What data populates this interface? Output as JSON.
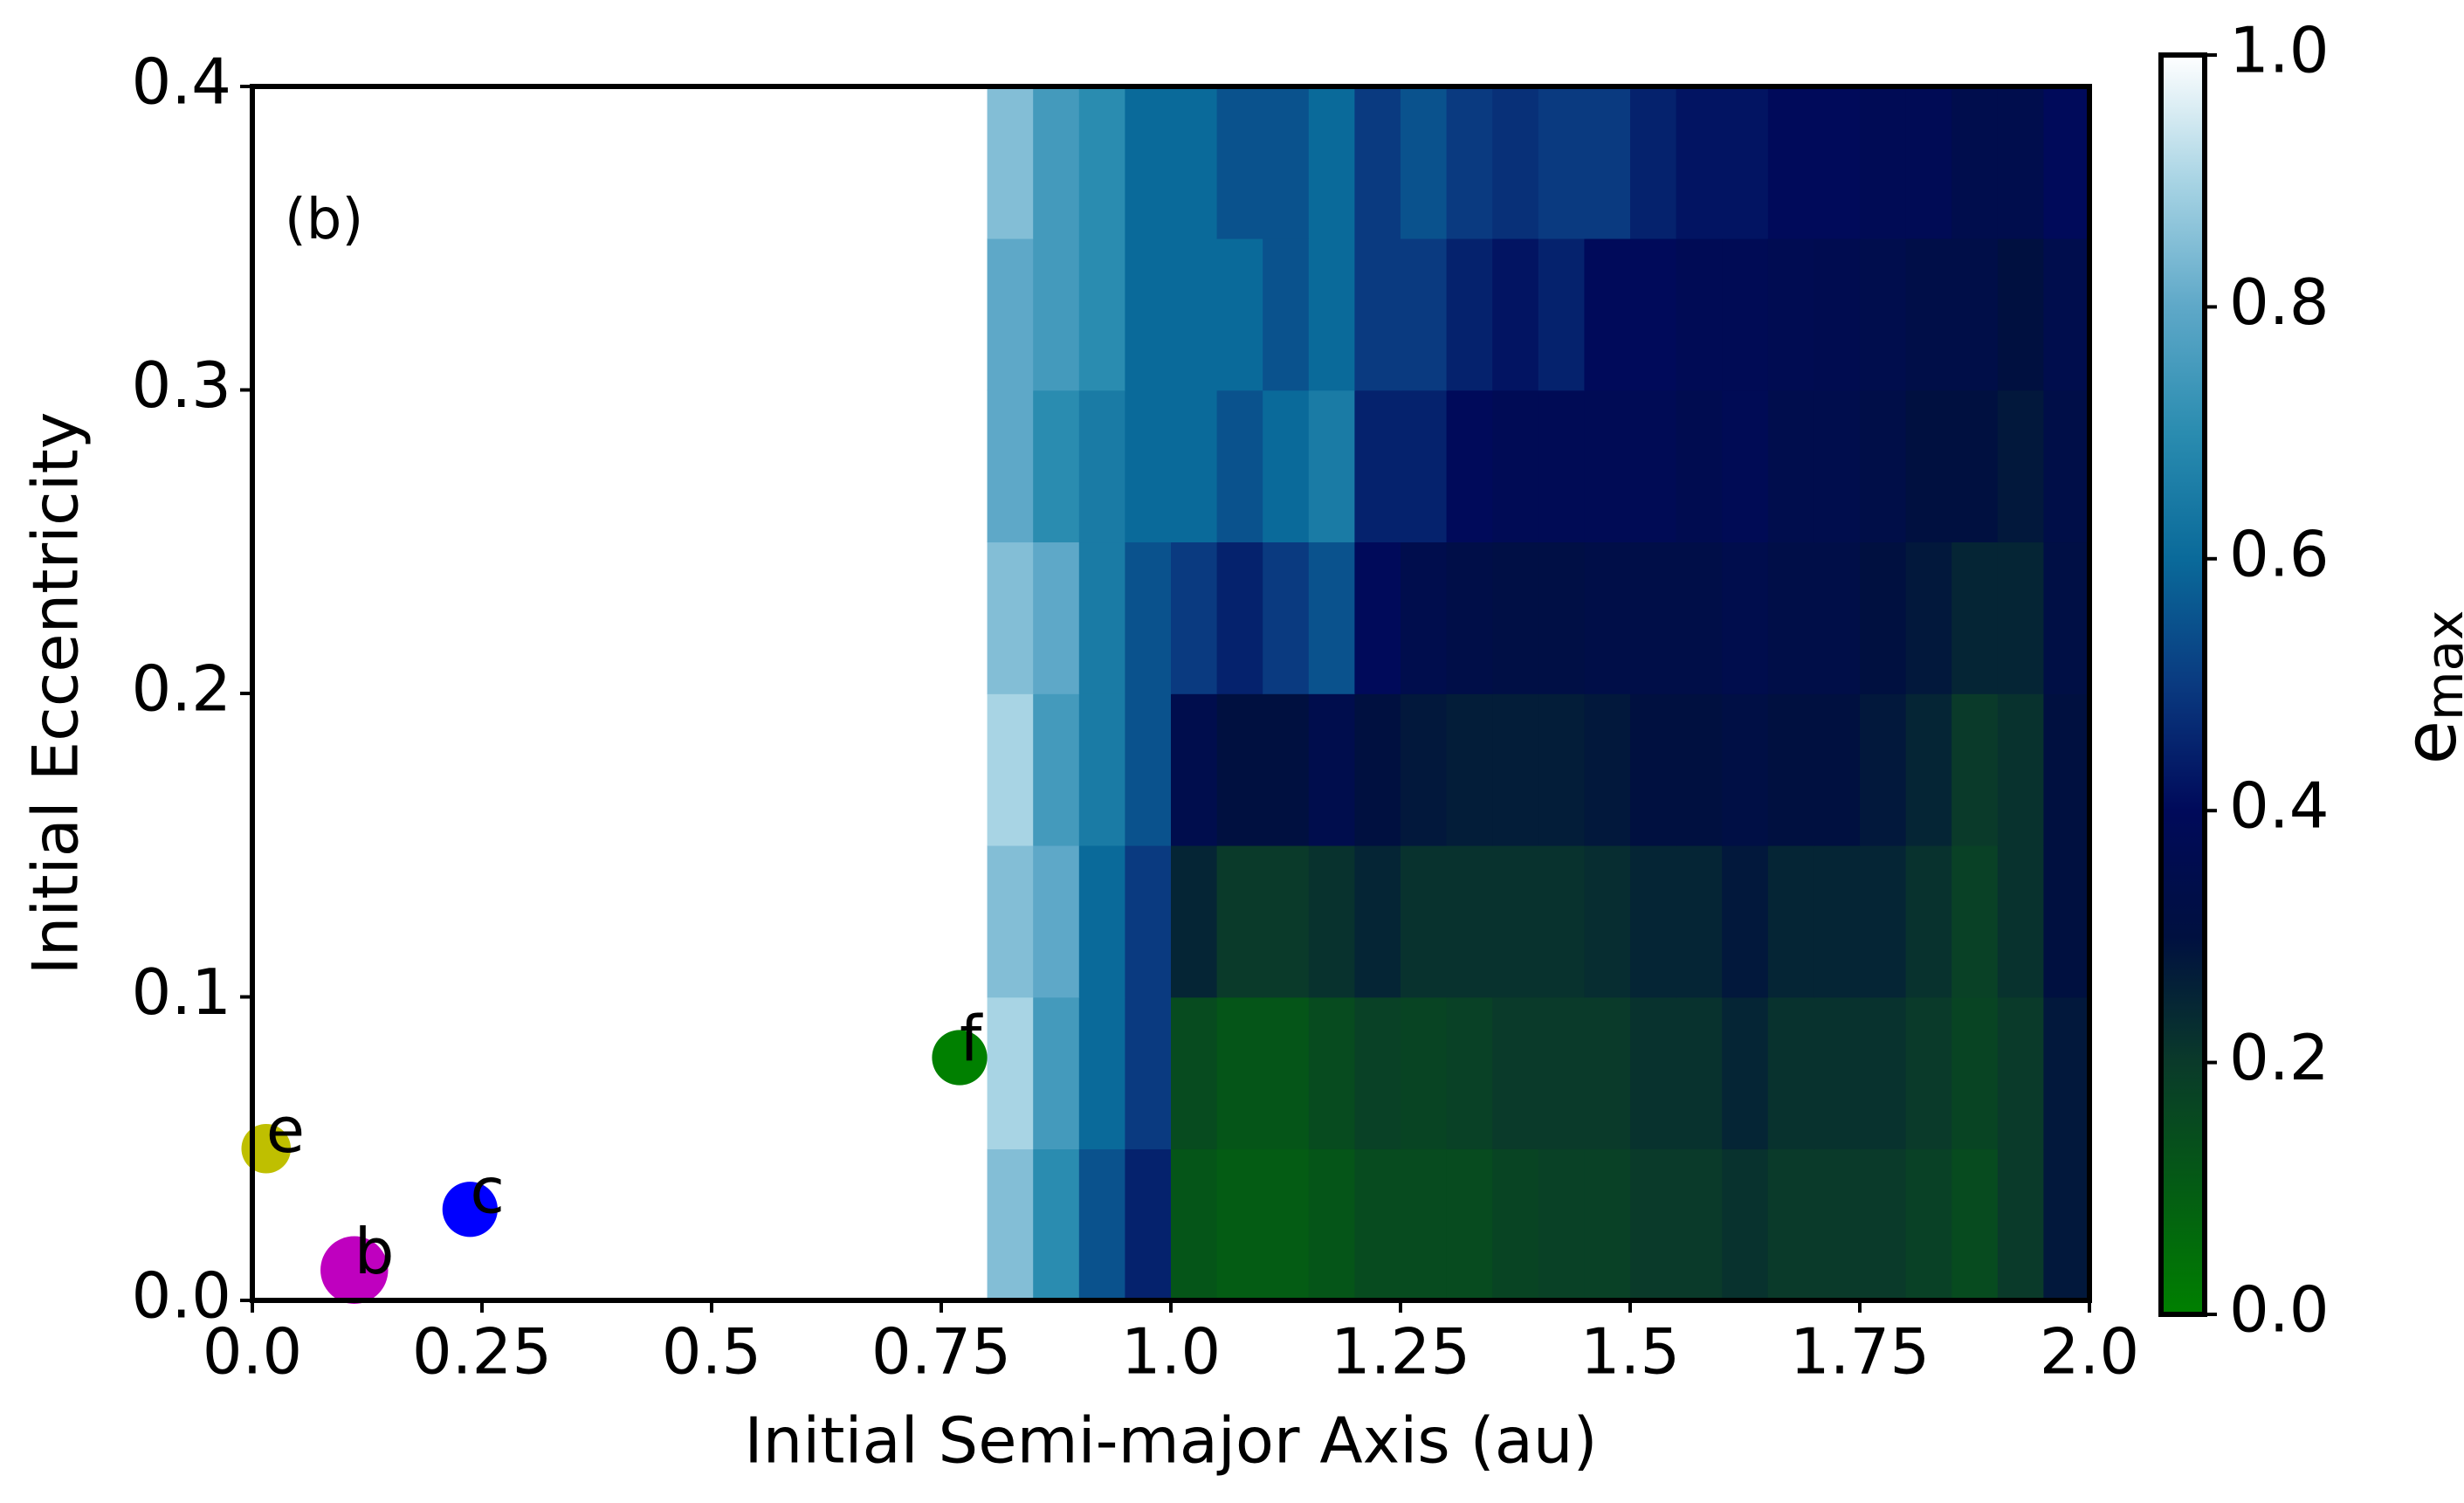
{
  "chart_data": {
    "type": "scatter",
    "xlabel": "Initial Semi-major Axis (au)",
    "ylabel": "Initial Eccentricity",
    "annotation": "(b)",
    "annotation_color": "#ff0000",
    "annotation_x": 0.035,
    "annotation_y": 0.355,
    "xlim": [
      0,
      2.0
    ],
    "ylim": [
      0,
      0.4
    ],
    "xticks": [
      {
        "value": 0,
        "label": "0.0"
      },
      0.25,
      0.5,
      0.75,
      {
        "value": 1,
        "label": "1.0"
      },
      1.25,
      1.5,
      1.75,
      {
        "value": 2,
        "label": "2.0"
      }
    ],
    "yticks": [
      {
        "value": 0,
        "label": "0.0"
      },
      0.1,
      0.2,
      0.3,
      0.4
    ],
    "points": [
      {
        "label": "e",
        "x": 0.015,
        "y": 0.05,
        "size": 800,
        "color": "#bfbf00"
      },
      {
        "label": "b",
        "x": 0.111,
        "y": 0.01,
        "size": 1500,
        "color": "#bf00bf"
      },
      {
        "label": "c",
        "x": 0.237,
        "y": 0.03,
        "size": 1000,
        "color": "#0000ff"
      },
      {
        "label": "f",
        "x": 0.77,
        "y": 0.08,
        "size": 1000,
        "color": "#008000"
      }
    ],
    "heatmap": {
      "x_edges": [
        0.8,
        0.85,
        0.9,
        0.95,
        1.0,
        1.05,
        1.1,
        1.15,
        1.2,
        1.25,
        1.3,
        1.35,
        1.4,
        1.45,
        1.5,
        1.55,
        1.6,
        1.65,
        1.7,
        1.75,
        1.8,
        1.85,
        1.9,
        1.95,
        2.0
      ],
      "y_edges": [
        0,
        0.05,
        0.1,
        0.15,
        0.2,
        0.25,
        0.3,
        0.35,
        0.4
      ],
      "values": [
        [
          0.85,
          0.7,
          0.55,
          0.45,
          0.12,
          0.1,
          0.1,
          0.12,
          0.15,
          0.15,
          0.15,
          0.17,
          0.18,
          0.18,
          0.2,
          0.2,
          0.22,
          0.2,
          0.2,
          0.2,
          0.18,
          0.15,
          0.2,
          0.28
        ],
        [
          0.9,
          0.75,
          0.6,
          0.5,
          0.15,
          0.12,
          0.12,
          0.15,
          0.18,
          0.17,
          0.18,
          0.2,
          0.2,
          0.2,
          0.22,
          0.22,
          0.25,
          0.22,
          0.22,
          0.22,
          0.2,
          0.17,
          0.2,
          0.28
        ],
        [
          0.85,
          0.8,
          0.6,
          0.5,
          0.25,
          0.2,
          0.2,
          0.22,
          0.25,
          0.22,
          0.22,
          0.22,
          0.22,
          0.23,
          0.25,
          0.25,
          0.28,
          0.25,
          0.25,
          0.25,
          0.22,
          0.18,
          0.22,
          0.3
        ],
        [
          0.9,
          0.75,
          0.65,
          0.55,
          0.35,
          0.3,
          0.3,
          0.35,
          0.3,
          0.28,
          0.27,
          0.27,
          0.27,
          0.28,
          0.3,
          0.3,
          0.32,
          0.3,
          0.3,
          0.28,
          0.25,
          0.2,
          0.22,
          0.3
        ],
        [
          0.85,
          0.8,
          0.65,
          0.55,
          0.5,
          0.45,
          0.5,
          0.55,
          0.4,
          0.35,
          0.33,
          0.32,
          0.32,
          0.33,
          0.33,
          0.33,
          0.35,
          0.33,
          0.33,
          0.3,
          0.28,
          0.25,
          0.25,
          0.32
        ],
        [
          0.8,
          0.7,
          0.65,
          0.6,
          0.6,
          0.55,
          0.6,
          0.65,
          0.45,
          0.45,
          0.4,
          0.38,
          0.38,
          0.38,
          0.38,
          0.36,
          0.38,
          0.35,
          0.35,
          0.33,
          0.3,
          0.3,
          0.28,
          0.33
        ],
        [
          0.8,
          0.75,
          0.7,
          0.6,
          0.6,
          0.6,
          0.55,
          0.6,
          0.5,
          0.5,
          0.45,
          0.42,
          0.45,
          0.4,
          0.4,
          0.38,
          0.38,
          0.37,
          0.36,
          0.35,
          0.33,
          0.33,
          0.3,
          0.35
        ],
        [
          0.85,
          0.75,
          0.7,
          0.6,
          0.6,
          0.55,
          0.55,
          0.6,
          0.5,
          0.55,
          0.5,
          0.48,
          0.5,
          0.5,
          0.45,
          0.42,
          0.42,
          0.4,
          0.4,
          0.38,
          0.38,
          0.35,
          0.35,
          0.4
        ]
      ]
    },
    "colormap": [
      "#008000",
      "#045c14",
      "#0a3a2a",
      "#001040",
      "#000a5a",
      "#0a3a80",
      "#0a6a9a",
      "#2a8cb0",
      "#5ea8c8",
      "#a8d4e4",
      "#ffffff"
    ],
    "clim": [
      0,
      1.0
    ],
    "cticks": [
      {
        "value": 0,
        "label": "0.0"
      },
      0.2,
      0.4,
      0.6,
      0.8,
      {
        "value": 1,
        "label": "1.0"
      }
    ],
    "colorbar_label": "e",
    "colorbar_label_subscript": "max"
  }
}
